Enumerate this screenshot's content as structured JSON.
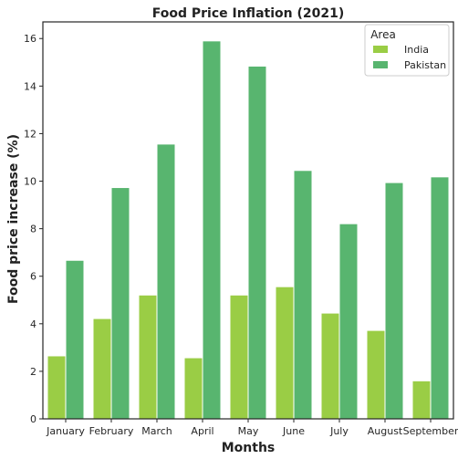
{
  "chart_data": {
    "type": "bar",
    "title": "Food Price Inflation (2021)",
    "xlabel": "Months",
    "ylabel": "Food price increase (%)",
    "ylim": [
      0,
      16.7
    ],
    "yticks": [
      0,
      2,
      4,
      6,
      8,
      10,
      12,
      14,
      16
    ],
    "categories": [
      "January",
      "February",
      "March",
      "April",
      "May",
      "June",
      "July",
      "August",
      "September"
    ],
    "series": [
      {
        "name": "India",
        "color": "#9acd45",
        "values": [
          2.65,
          4.22,
          5.21,
          2.57,
          5.21,
          5.56,
          4.45,
          3.72,
          1.6
        ]
      },
      {
        "name": "Pakistan",
        "color": "#58b56f",
        "values": [
          6.67,
          9.73,
          11.56,
          15.9,
          14.84,
          10.45,
          8.21,
          9.94,
          10.18
        ]
      }
    ],
    "legend": {
      "title": "Area",
      "placement": "top-right"
    },
    "grid": false
  }
}
